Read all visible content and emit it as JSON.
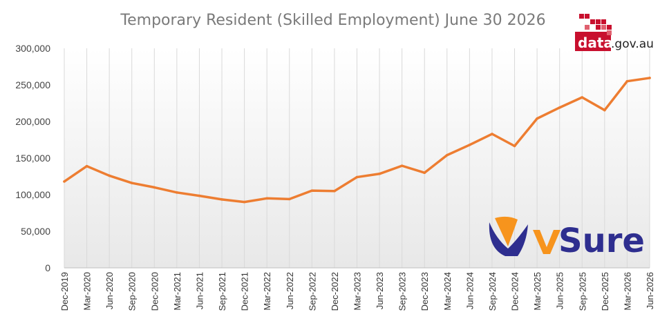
{
  "chart_data": {
    "type": "line",
    "title": "Temporary Resident (Skilled Employment) June 30 2026",
    "xlabel": "",
    "ylabel": "",
    "categories": [
      "Dec-2019",
      "Mar-2020",
      "Jun-2020",
      "Sep-2020",
      "Dec-2020",
      "Mar-2021",
      "Jun-2021",
      "Sep-2021",
      "Dec-2021",
      "Mar-2022",
      "Jun-2022",
      "Sep-2022",
      "Dec-2022",
      "Mar-2023",
      "Jun-2023",
      "Sep-2023",
      "Dec-2023",
      "Mar-2024",
      "Jun-2024",
      "Sep-2024",
      "Dec-2024",
      "Mar-2025",
      "Jun-2025",
      "Sep-2025",
      "Dec-2025",
      "Mar-2026",
      "Jun-2026"
    ],
    "values": [
      118000,
      139000,
      126000,
      116000,
      110000,
      103000,
      98500,
      93500,
      90000,
      95000,
      94000,
      105500,
      105000,
      124000,
      128500,
      139500,
      130000,
      154000,
      168000,
      183000,
      166500,
      204000,
      219000,
      233000,
      215500,
      255000,
      259500
    ],
    "ylim": [
      0,
      300000
    ],
    "yticks": [
      0,
      50000,
      100000,
      150000,
      200000,
      250000,
      300000
    ],
    "ytick_labels": [
      "0",
      "50,000",
      "100,000",
      "150,000",
      "200,000",
      "250,000",
      "300,000"
    ],
    "line_color": "#ED7D31",
    "grid": "vertical lines at each category",
    "legend": "none"
  },
  "logos": {
    "datagov": {
      "text_main": "data",
      "text_suffix": ".gov.au",
      "color": "#C8102E"
    },
    "vsure": {
      "text": "vSure",
      "color": "#2E2E8F",
      "accent": "#F7941D"
    }
  }
}
